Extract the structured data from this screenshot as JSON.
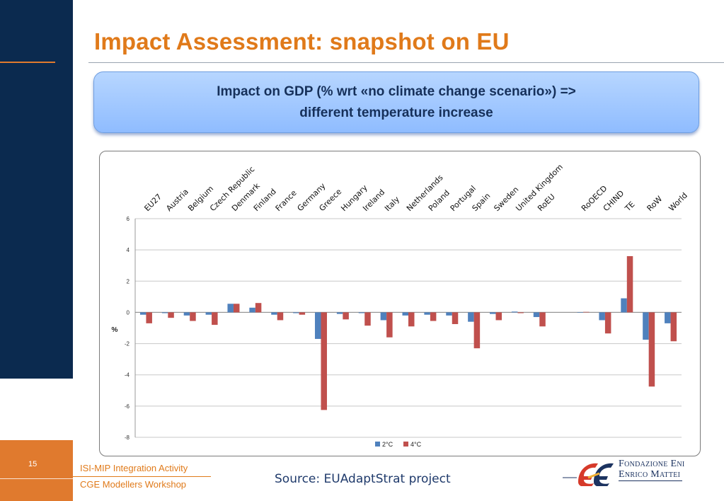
{
  "slide": {
    "title": "Impact Assessment: snapshot on EU",
    "page_number": "15",
    "footer_line1": "ISI-MIP Integration Activity",
    "footer_line2": "CGE Modellers Workshop",
    "source": "Source: EUAdaptStrat project"
  },
  "banner": {
    "line1": "Impact on GDP (% wrt «no climate change scenario») =>",
    "line2": "different temperature increase"
  },
  "logo": {
    "line1": "Fondazione Eni",
    "line2": "Enrico Mattei",
    "icon": "feem-logo-icon"
  },
  "colors": {
    "accent_orange": "#e07a1a",
    "navy": "#0b2a4f",
    "series_2c": "#4f81bd",
    "series_4c": "#c0504d"
  },
  "chart_data": {
    "type": "bar",
    "title": "",
    "xlabel": "",
    "ylabel": "%",
    "ylim": [
      -8,
      6
    ],
    "yticks": [
      6,
      4,
      2,
      0,
      -2,
      -4,
      -6,
      -8
    ],
    "grid": true,
    "legend_position": "bottom",
    "category_axis_position": "top",
    "categories": [
      "EU27",
      "Austria",
      "Belgium",
      "Czech Republic",
      "Denmark",
      "Finland",
      "France",
      "Germany",
      "Greece",
      "Hungary",
      "Ireland",
      "Italy",
      "Netherlands",
      "Poland",
      "Portugal",
      "Spain",
      "Sweden",
      "United Kingdom",
      "RoEU",
      "",
      "RoOECD",
      "CHIND",
      "TE",
      "RoW",
      "World"
    ],
    "series": [
      {
        "name": "2°C",
        "color": "#4f81bd",
        "values": [
          -0.15,
          -0.05,
          -0.2,
          -0.15,
          0.55,
          0.3,
          -0.15,
          -0.05,
          -1.7,
          -0.1,
          -0.05,
          -0.5,
          -0.2,
          -0.15,
          -0.2,
          -0.6,
          -0.1,
          0.05,
          -0.3,
          null,
          0.0,
          -0.5,
          0.9,
          -1.75,
          -0.7
        ]
      },
      {
        "name": "4°C",
        "color": "#c0504d",
        "values": [
          -0.7,
          -0.35,
          -0.55,
          -0.8,
          0.55,
          0.6,
          -0.5,
          -0.15,
          -6.25,
          -0.45,
          -0.85,
          -1.6,
          -0.9,
          -0.55,
          -0.75,
          -2.3,
          -0.5,
          -0.05,
          -0.9,
          null,
          0.03,
          -1.35,
          3.6,
          -4.75,
          -1.85
        ]
      }
    ]
  }
}
